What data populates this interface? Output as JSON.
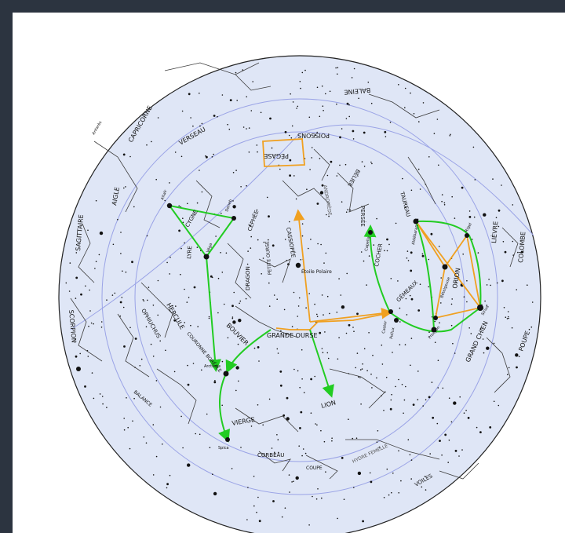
{
  "map": {
    "colors": {
      "background_outer": "#2c3440",
      "sky_disk": "#dfe6f6",
      "circle_lines": "#9aa3e6",
      "star_color": "#111111",
      "constellation_lines": "#3c3c3c",
      "green_path": "#22cc22",
      "orange_path": "#f0a020"
    },
    "constellations": [
      {
        "label": "BALEINE"
      },
      {
        "label": "CAPRICORNE"
      },
      {
        "label": "VERSEAU"
      },
      {
        "label": "POISSONS"
      },
      {
        "label": "PÉGASE"
      },
      {
        "label": "BÉLIER"
      },
      {
        "label": "TAUREAU"
      },
      {
        "label": "AIGLE"
      },
      {
        "label": "SAGITTAIRE"
      },
      {
        "label": "CYGNE"
      },
      {
        "label": "LYRE"
      },
      {
        "label": "CÉPHÉE"
      },
      {
        "label": "CASSIOPÉE"
      },
      {
        "label": "PERSÉE"
      },
      {
        "label": "COCHER"
      },
      {
        "label": "DRAGON"
      },
      {
        "label": "PETITE OURSE"
      },
      {
        "label": "HERCULE"
      },
      {
        "label": "OPHIUCHUS"
      },
      {
        "label": "SCORPION"
      },
      {
        "label": "BOUVIER"
      },
      {
        "label": "COURONNE BORÉALE"
      },
      {
        "label": "GRANDE OURSE"
      },
      {
        "label": "GÉMEAUX"
      },
      {
        "label": "ORION"
      },
      {
        "label": "LIÈVRE"
      },
      {
        "label": "COLOMBE"
      },
      {
        "label": "GRAND CHIEN"
      },
      {
        "label": "POUPE"
      },
      {
        "label": "LION"
      },
      {
        "label": "VIERGE"
      },
      {
        "label": "BALANCE"
      },
      {
        "label": "CORBEAU"
      },
      {
        "label": "COUPE"
      },
      {
        "label": "HYDRE FEMELLE"
      },
      {
        "label": "VOILES"
      },
      {
        "label": "ANDROMÈDE"
      }
    ],
    "stars": [
      {
        "label": "Étoile Polaire"
      },
      {
        "label": "Véga"
      },
      {
        "label": "Deneb"
      },
      {
        "label": "Altaïr"
      },
      {
        "label": "Arcturus"
      },
      {
        "label": "Capella"
      },
      {
        "label": "Aldébaran"
      },
      {
        "label": "Bételgeuse"
      },
      {
        "label": "Rigel"
      },
      {
        "label": "Sirius"
      },
      {
        "label": "Procyon"
      },
      {
        "label": "Castor"
      },
      {
        "label": "Pollux"
      },
      {
        "label": "Spica"
      },
      {
        "label": "Antarès"
      }
    ]
  }
}
